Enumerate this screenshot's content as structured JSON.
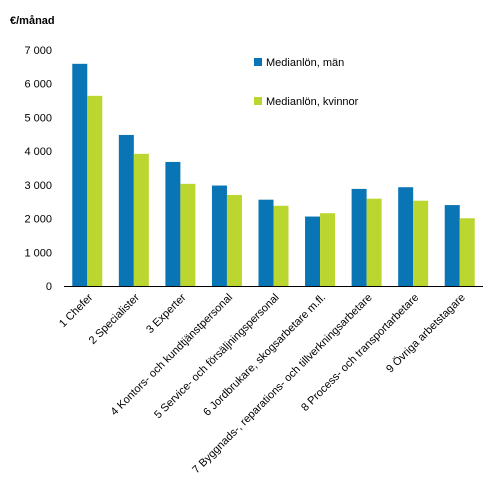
{
  "chart_data": {
    "type": "bar",
    "title": "",
    "ylabel": "€/månad",
    "xlabel": "",
    "ylim": [
      0,
      7000
    ],
    "yticks": [
      0,
      1000,
      2000,
      3000,
      4000,
      5000,
      6000,
      7000
    ],
    "ytick_labels": [
      "0",
      "1 000",
      "2 000",
      "3 000",
      "4 000",
      "5 000",
      "6 000",
      "7 000"
    ],
    "categories": [
      "1 Chefer",
      "2 Specialister",
      "3 Experter",
      "4 Kontors- och kundtjänstpersonal",
      "5 Service- och försäljningspersonal",
      "6 Jordbrukare, skogsarbetare m.fl.",
      "7 Byggnads-, reparations- och tillverkningsarbetare",
      "8 Process- och transportarbetare",
      "9 Övriga arbetstagare"
    ],
    "series": [
      {
        "name": "Medianlön, män",
        "color": "#0a75b5",
        "values": [
          6590,
          4480,
          3680,
          2980,
          2560,
          2060,
          2880,
          2930,
          2400
        ]
      },
      {
        "name": "Medianlön, kvinnor",
        "color": "#bcd630",
        "values": [
          5640,
          3920,
          3030,
          2700,
          2380,
          2160,
          2590,
          2530,
          2010
        ]
      }
    ],
    "grid": false,
    "legend_position": "top-right"
  }
}
